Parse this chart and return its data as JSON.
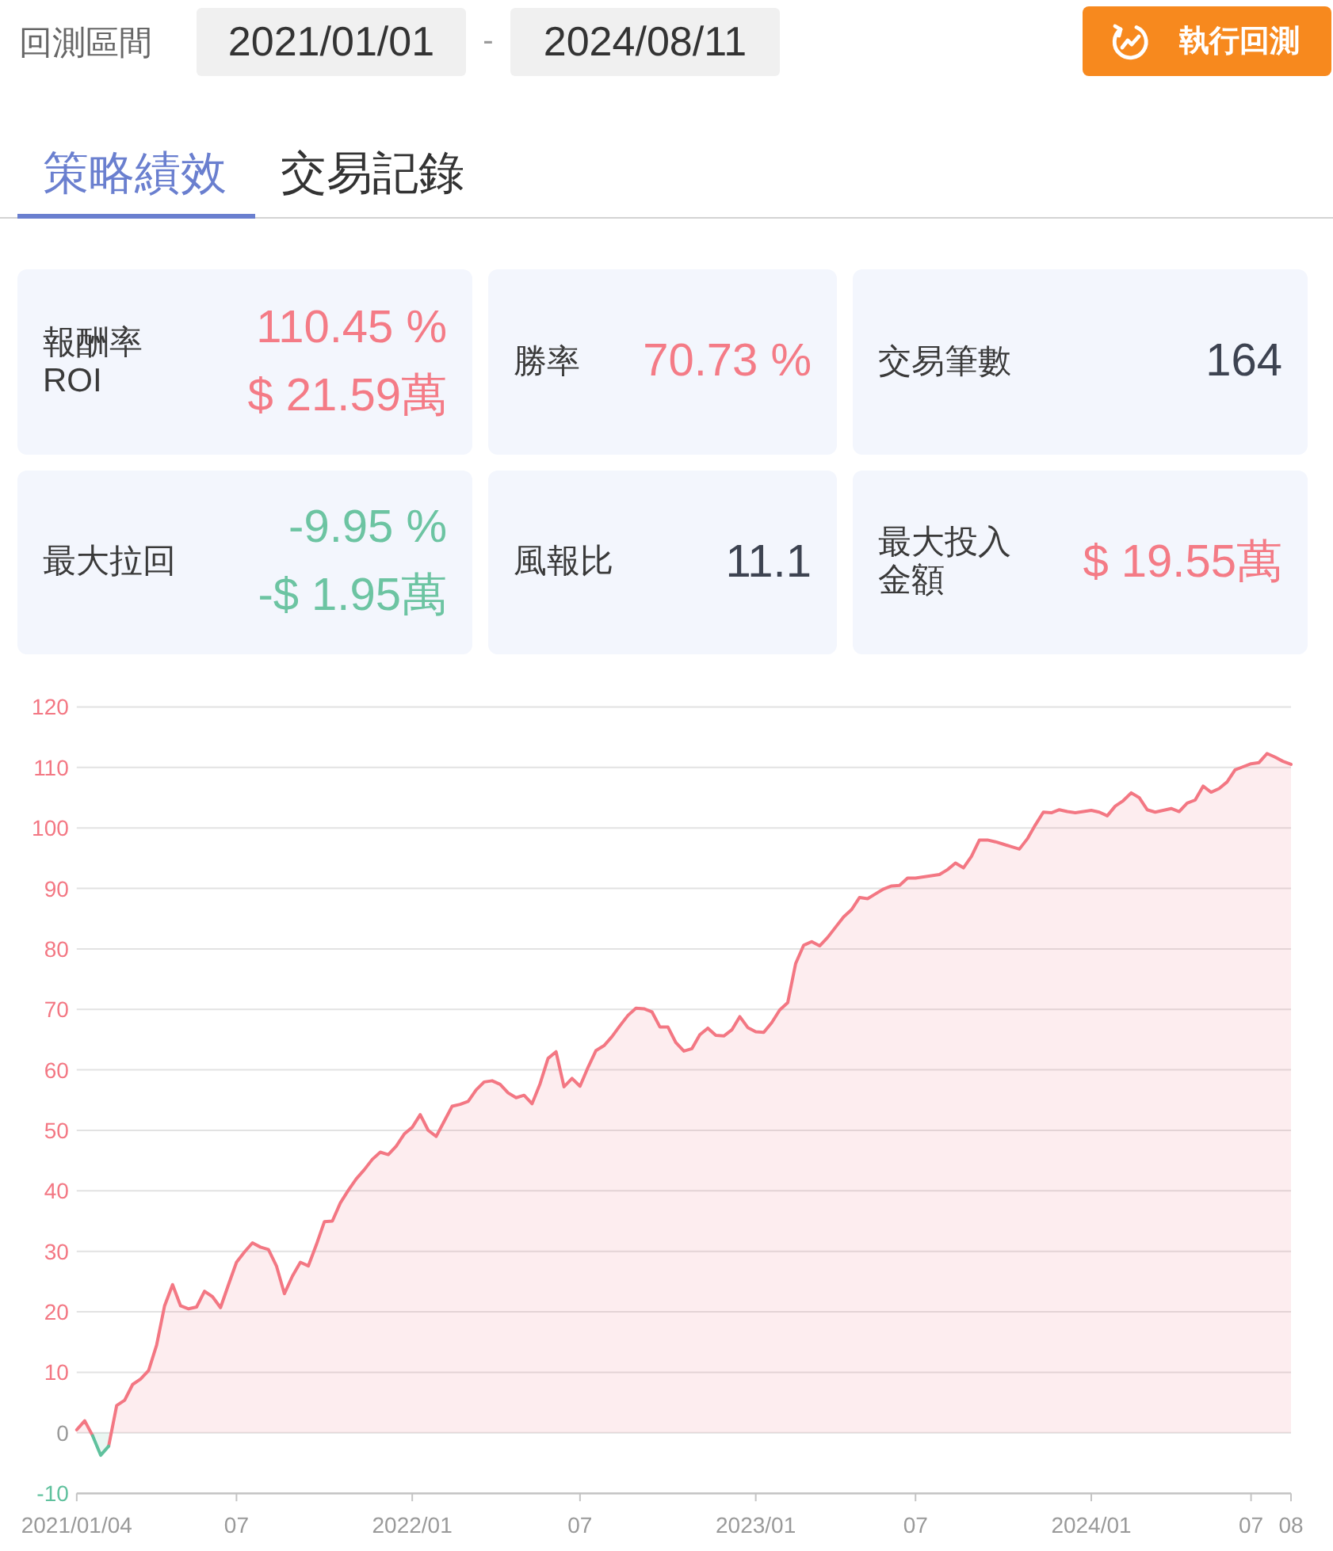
{
  "chart_data": [
    {
      "type": "other",
      "title": "回測區間",
      "annotations": [
        "2021/01/01",
        "-",
        "2024/08/11",
        "執行回測"
      ]
    },
    {
      "type": "other",
      "annotations": [
        "策略績效",
        "交易記錄"
      ]
    },
    {
      "type": "other",
      "title": "報酬率 ROI",
      "annotations": [
        "110.45 %",
        "$ 21.59萬"
      ],
      "colors": [
        "#f47b86",
        "#f47b86"
      ]
    },
    {
      "type": "other",
      "title": "勝率",
      "annotations": [
        "70.73 %"
      ],
      "colors": [
        "#f47b86"
      ]
    },
    {
      "type": "other",
      "title": "交易筆數",
      "annotations": [
        "164"
      ],
      "colors": [
        "#3d4351"
      ]
    },
    {
      "type": "other",
      "title": "最大拉回",
      "annotations": [
        "-9.95 %",
        "-$ 1.95萬"
      ],
      "colors": [
        "#6cc4a2",
        "#6cc4a2"
      ]
    },
    {
      "type": "other",
      "title": "風報比",
      "annotations": [
        "11.1"
      ],
      "colors": [
        "#3d4351"
      ]
    },
    {
      "type": "other",
      "title": "最大投入金額",
      "annotations": [
        "$ 19.55萬"
      ],
      "colors": [
        "#f47b86"
      ]
    },
    {
      "type": "area",
      "ylim": [
        -10,
        120
      ],
      "yticks": [
        -10,
        0,
        10,
        20,
        30,
        40,
        50,
        60,
        70,
        80,
        90,
        100,
        110,
        120
      ],
      "grid": "y",
      "categories": [
        "2021/01/04",
        null,
        null,
        null,
        null,
        null,
        null,
        null,
        null,
        null,
        null,
        null,
        null,
        null,
        null,
        null,
        null,
        null,
        null,
        null,
        "07",
        null,
        null,
        null,
        null,
        null,
        null,
        null,
        null,
        null,
        null,
        null,
        null,
        null,
        null,
        null,
        null,
        null,
        null,
        null,
        null,
        null,
        "2022/01",
        null,
        null,
        null,
        null,
        null,
        null,
        null,
        null,
        null,
        null,
        null,
        null,
        null,
        null,
        null,
        null,
        null,
        null,
        null,
        null,
        "07",
        null,
        null,
        null,
        null,
        null,
        null,
        null,
        null,
        null,
        null,
        null,
        null,
        null,
        null,
        null,
        null,
        null,
        null,
        null,
        null,
        null,
        "2023/01",
        null,
        null,
        null,
        null,
        null,
        null,
        null,
        null,
        null,
        null,
        null,
        null,
        null,
        null,
        null,
        null,
        null,
        null,
        null,
        "07",
        null,
        null,
        null,
        null,
        null,
        null,
        null,
        null,
        null,
        null,
        null,
        null,
        null,
        null,
        null,
        null,
        null,
        null,
        null,
        null,
        null,
        "2024/01",
        null,
        null,
        null,
        null,
        null,
        null,
        null,
        null,
        null,
        null,
        null,
        null,
        null,
        null,
        null,
        null,
        null,
        null,
        null,
        "07",
        null,
        null,
        null,
        null,
        "08"
      ],
      "series": [
        {
          "color": "#f37783",
          "values": [
            0.5,
            2.0,
            -0.5,
            null,
            -2.2,
            4.5,
            5.4,
            8.0,
            8.9,
            10.3,
            14.5,
            21.0,
            24.5,
            21.0,
            20.5,
            20.8,
            23.4,
            22.5,
            20.7,
            24.5,
            28.2,
            29.9,
            31.4,
            30.7,
            30.3,
            27.6,
            23.0,
            25.9,
            28.2,
            27.6,
            31.1,
            34.9,
            35.0,
            38.0,
            40.1,
            42.0,
            43.5,
            45.2,
            46.4,
            46.0,
            47.4,
            49.4,
            50.5,
            52.6,
            50.0,
            49.0,
            51.5,
            54.0,
            54.3,
            54.8,
            56.7,
            58.0,
            58.2,
            57.6,
            56.2,
            55.4,
            55.8,
            54.4,
            57.7,
            61.9,
            63.0,
            57.2,
            58.6,
            57.3,
            60.4,
            63.2,
            64.0,
            65.5,
            67.3,
            69.0,
            70.2,
            70.1,
            69.6,
            67.1,
            67.1,
            64.5,
            63.1,
            63.5,
            65.8,
            66.9,
            65.7,
            65.6,
            66.6,
            68.8,
            67.0,
            66.3,
            66.2,
            67.8,
            69.9,
            71.1,
            77.6,
            80.6,
            81.2,
            80.5,
            81.9,
            83.6,
            85.3,
            86.5,
            88.5,
            88.3,
            89.1,
            89.9,
            90.4,
            90.5,
            91.7,
            91.7,
            91.9,
            92.1,
            92.3,
            93.1,
            94.2,
            93.4,
            95.3,
            98.0,
            98.0,
            97.7,
            97.3,
            96.9,
            96.5,
            98.2,
            100.5,
            102.6,
            102.5,
            103.0,
            102.7,
            102.5,
            102.7,
            102.9,
            102.6,
            102.0,
            103.6,
            104.5,
            105.8,
            105.0,
            103.0,
            102.6,
            102.9,
            103.2,
            102.7,
            104.1,
            104.6,
            106.9,
            105.9,
            106.5,
            107.6,
            109.6,
            110.1,
            110.6,
            110.8,
            112.3,
            111.7,
            111.0,
            110.5
          ]
        },
        {
          "color": "#5fc19d",
          "values": [
            null,
            null,
            -0.5,
            -3.7,
            -2.2,
            null,
            null,
            null,
            null,
            null,
            null,
            null,
            null,
            null,
            null,
            null,
            null,
            null,
            null,
            null,
            null,
            null,
            null,
            null,
            null,
            null,
            null,
            null,
            null,
            null,
            null,
            null,
            null,
            null,
            null,
            null,
            null,
            null,
            null,
            null,
            null,
            null,
            null,
            null,
            null,
            null,
            null,
            null,
            null,
            null,
            null,
            null,
            null,
            null,
            null,
            null,
            null,
            null,
            null,
            null,
            null,
            null,
            null,
            null,
            null,
            null,
            null,
            null,
            null,
            null,
            null,
            null,
            null,
            null,
            null,
            null,
            null,
            null,
            null,
            null,
            null,
            null,
            null,
            null,
            null,
            null,
            null,
            null,
            null,
            null,
            null,
            null,
            null,
            null,
            null,
            null,
            null,
            null,
            null,
            null,
            null,
            null,
            null,
            null,
            null,
            null,
            null,
            null,
            null,
            null,
            null,
            null,
            null,
            null,
            null,
            null,
            null,
            null,
            null,
            null,
            null,
            null,
            null,
            null,
            null,
            null,
            null,
            null,
            null,
            null,
            null,
            null,
            null,
            null,
            null,
            null,
            null,
            null,
            null,
            null,
            null,
            null,
            null,
            null,
            null,
            null,
            null,
            null,
            null,
            null,
            null,
            null,
            null
          ]
        }
      ]
    }
  ]
}
